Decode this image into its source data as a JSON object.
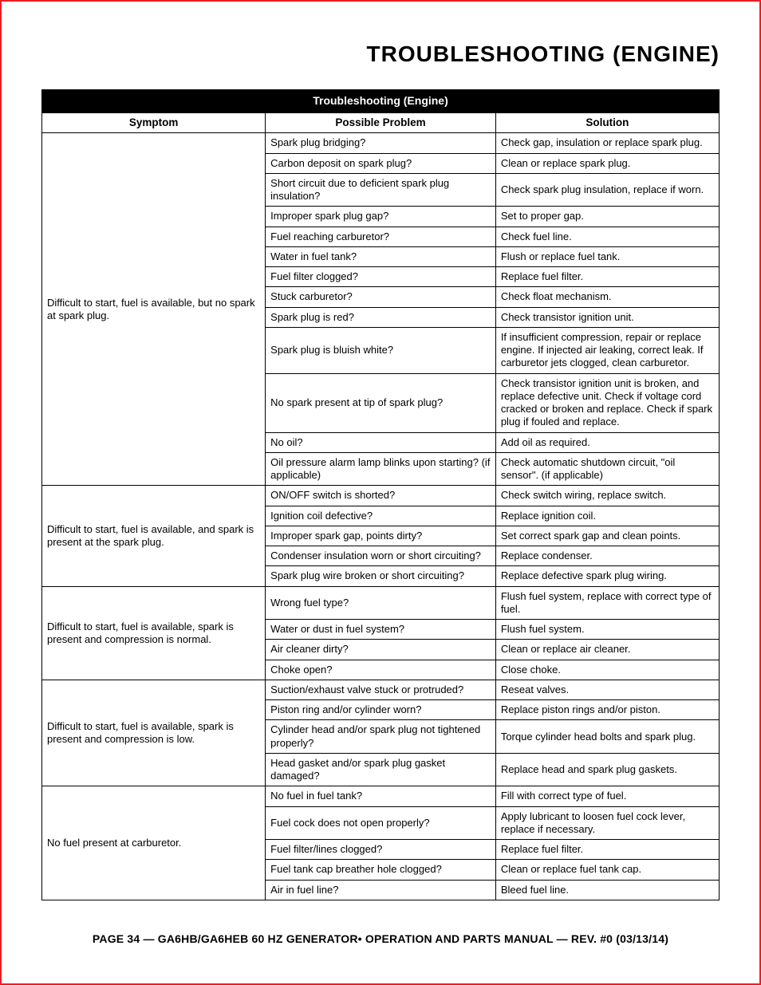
{
  "page": {
    "main_title": "TROUBLESHOOTING (ENGINE)",
    "footer": "PAGE 34 — GA6HB/GA6HEB 60 HZ GENERATOR• OPERATION AND PARTS MANUAL — REV. #0 (03/13/14)"
  },
  "table": {
    "caption": "Troubleshooting (Engine)",
    "columns": {
      "symptom": "Symptom",
      "problem": "Possible Problem",
      "solution": "Solution"
    },
    "groups": [
      {
        "symptom": "Difficult to start, fuel is available, but no spark at spark plug.",
        "rows": [
          {
            "problem": "Spark plug bridging?",
            "solution": "Check gap, insulation or replace spark plug."
          },
          {
            "problem": "Carbon deposit on spark plug?",
            "solution": "Clean or replace spark plug."
          },
          {
            "problem": "Short circuit due to deficient spark plug insulation?",
            "solution": "Check spark plug insulation, replace if worn."
          },
          {
            "problem": "Improper spark plug gap?",
            "solution": "Set to proper gap."
          },
          {
            "problem": "Fuel reaching carburetor?",
            "solution": "Check fuel line."
          },
          {
            "problem": "Water in fuel tank?",
            "solution": "Flush or replace fuel tank."
          },
          {
            "problem": "Fuel filter clogged?",
            "solution": "Replace fuel filter."
          },
          {
            "problem": "Stuck carburetor?",
            "solution": "Check float mechanism."
          },
          {
            "problem": "Spark plug is red?",
            "solution": "Check transistor ignition unit."
          },
          {
            "problem": "Spark plug is bluish white?",
            "solution": "If insufficient compression, repair or replace engine. If injected air leaking, correct leak. If carburetor jets clogged, clean carburetor."
          },
          {
            "problem": "No spark present at tip of spark plug?",
            "solution": "Check transistor ignition unit is broken, and replace defective unit. Check if voltage cord cracked or broken and replace. Check if spark plug if fouled and replace."
          },
          {
            "problem": "No oil?",
            "solution": "Add oil as required."
          },
          {
            "problem": "Oil pressure alarm lamp blinks upon starting? (if applicable)",
            "solution": "Check automatic shutdown circuit, \"oil sensor\". (if applicable)"
          }
        ]
      },
      {
        "symptom": "Difficult to start, fuel is available, and spark is present at the spark plug.",
        "rows": [
          {
            "problem": "ON/OFF switch is shorted?",
            "solution": "Check switch wiring, replace switch."
          },
          {
            "problem": "Ignition coil defective?",
            "solution": "Replace ignition coil."
          },
          {
            "problem": "Improper spark gap, points dirty?",
            "solution": "Set correct spark gap and clean points."
          },
          {
            "problem": "Condenser insulation worn or short circuiting?",
            "solution": "Replace condenser."
          },
          {
            "problem": "Spark plug wire broken or short circuiting?",
            "solution": "Replace defective spark plug wiring."
          }
        ]
      },
      {
        "symptom": "Difficult to start, fuel is available, spark is present and compression is normal.",
        "rows": [
          {
            "problem": "Wrong fuel type?",
            "solution": "Flush fuel system, replace with correct type of fuel."
          },
          {
            "problem": "Water or dust in fuel system?",
            "solution": "Flush fuel system."
          },
          {
            "problem": "Air cleaner dirty?",
            "solution": "Clean or replace air cleaner."
          },
          {
            "problem": "Choke open?",
            "solution": "Close choke."
          }
        ]
      },
      {
        "symptom": "Difficult to start, fuel is available, spark is present and compression is low.",
        "rows": [
          {
            "problem": "Suction/exhaust valve stuck or protruded?",
            "solution": "Reseat valves."
          },
          {
            "problem": "Piston ring and/or cylinder worn?",
            "solution": "Replace piston rings and/or piston."
          },
          {
            "problem": "Cylinder head and/or spark plug not tightened properly?",
            "solution": "Torque cylinder head bolts and spark plug."
          },
          {
            "problem": "Head gasket and/or spark plug gasket damaged?",
            "solution": "Replace head and spark plug gaskets."
          }
        ]
      },
      {
        "symptom": "No fuel present at carburetor.",
        "rows": [
          {
            "problem": "No fuel in fuel tank?",
            "solution": "Fill with correct type of fuel."
          },
          {
            "problem": "Fuel cock does not open properly?",
            "solution": "Apply lubricant to loosen fuel cock lever, replace if necessary."
          },
          {
            "problem": "Fuel filter/lines clogged?",
            "solution": "Replace fuel filter."
          },
          {
            "problem": "Fuel tank cap breather hole clogged?",
            "solution": "Clean or replace fuel tank cap."
          },
          {
            "problem": "Air in fuel line?",
            "solution": "Bleed fuel line."
          }
        ]
      }
    ]
  },
  "style": {
    "border_color": "#000000",
    "header_bg": "#000000",
    "header_fg": "#ffffff",
    "page_border": "#ed1c24",
    "font_family": "Arial, Helvetica, sans-serif"
  }
}
